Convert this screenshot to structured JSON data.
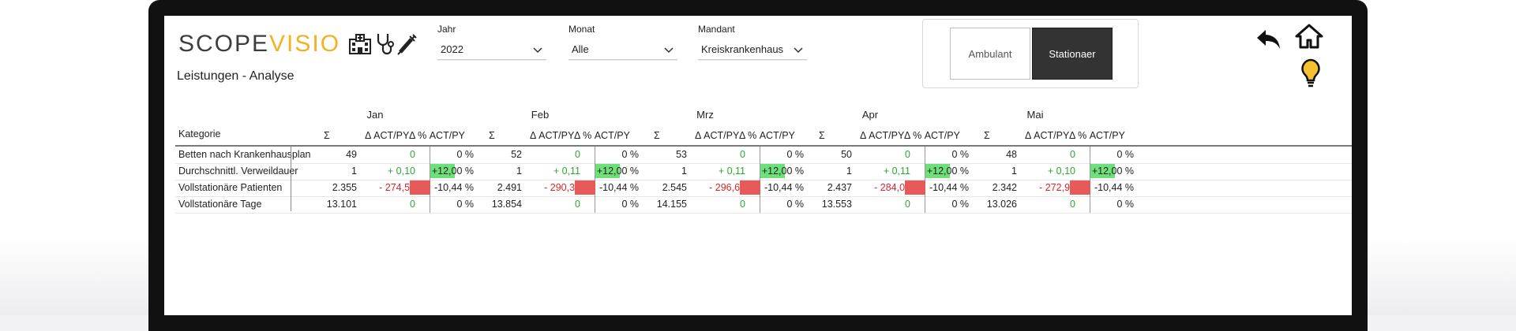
{
  "app": {
    "logo_left": "SCOPE",
    "logo_right": "VISIO",
    "page_title": "Leistungen - Analyse"
  },
  "filters": {
    "jahr": {
      "label": "Jahr",
      "value": "2022"
    },
    "monat": {
      "label": "Monat",
      "value": "Alle"
    },
    "mandant": {
      "label": "Mandant",
      "value": "Kreiskrankenhaus"
    }
  },
  "toggle": {
    "ambulant": "Ambulant",
    "stationaer": "Stationaer",
    "active": "Stationaer"
  },
  "icons": {
    "hospital": "hospital-icon",
    "stethoscope": "stethoscope-icon",
    "syringe": "syringe-icon",
    "back": "back-arrow-icon",
    "home": "home-icon",
    "bulb": "lightbulb-icon"
  },
  "colors": {
    "accent_yellow": "#f0b323",
    "positive": "#2ea830",
    "negative": "#d9262b",
    "pos_fill": "#6ee07a",
    "neg_fill": "#e85a5a"
  },
  "table": {
    "kategorie_header": "Kategorie",
    "sub_headers": [
      "Σ",
      "Δ ACT/PY",
      "Δ % ACT/PY"
    ],
    "months": [
      {
        "name": "Jan",
        "rows": [
          {
            "sum": "49",
            "delta": "0",
            "pct": "0 %"
          },
          {
            "sum": "1",
            "delta": "+ 0,10",
            "pct": "+12,00 %"
          },
          {
            "sum": "2.355",
            "delta": "- 274,57",
            "pct": "-10,44 %"
          },
          {
            "sum": "13.101",
            "delta": "0",
            "pct": "0 %"
          }
        ]
      },
      {
        "name": "Feb",
        "rows": [
          {
            "sum": "52",
            "delta": "0",
            "pct": "0 %"
          },
          {
            "sum": "1",
            "delta": "+ 0,11",
            "pct": "+12,00 %"
          },
          {
            "sum": "2.491",
            "delta": "- 290,35",
            "pct": "-10,44 %"
          },
          {
            "sum": "13.854",
            "delta": "0",
            "pct": "0 %"
          }
        ]
      },
      {
        "name": "Mrz",
        "rows": [
          {
            "sum": "53",
            "delta": "0",
            "pct": "0 %"
          },
          {
            "sum": "1",
            "delta": "+ 0,11",
            "pct": "+12,00 %"
          },
          {
            "sum": "2.545",
            "delta": "- 296,66",
            "pct": "-10,44 %"
          },
          {
            "sum": "14.155",
            "delta": "0",
            "pct": "0 %"
          }
        ]
      },
      {
        "name": "Apr",
        "rows": [
          {
            "sum": "50",
            "delta": "0",
            "pct": "0 %"
          },
          {
            "sum": "1",
            "delta": "+ 0,11",
            "pct": "+12,00 %"
          },
          {
            "sum": "2.437",
            "delta": "- 284,04",
            "pct": "-10,44 %"
          },
          {
            "sum": "13.553",
            "delta": "0",
            "pct": "0 %"
          }
        ]
      },
      {
        "name": "Mai",
        "rows": [
          {
            "sum": "48",
            "delta": "0",
            "pct": "0 %"
          },
          {
            "sum": "1",
            "delta": "+ 0,10",
            "pct": "+12,00 %"
          },
          {
            "sum": "2.342",
            "delta": "- 272,99",
            "pct": "-10,44 %"
          },
          {
            "sum": "13.026",
            "delta": "0",
            "pct": "0 %"
          }
        ]
      }
    ],
    "categories": [
      "Betten nach Krankenhausplan",
      "Durchschnittl. Verweildauer",
      "Vollstationäre Patienten",
      "Vollstationäre Tage"
    ]
  }
}
